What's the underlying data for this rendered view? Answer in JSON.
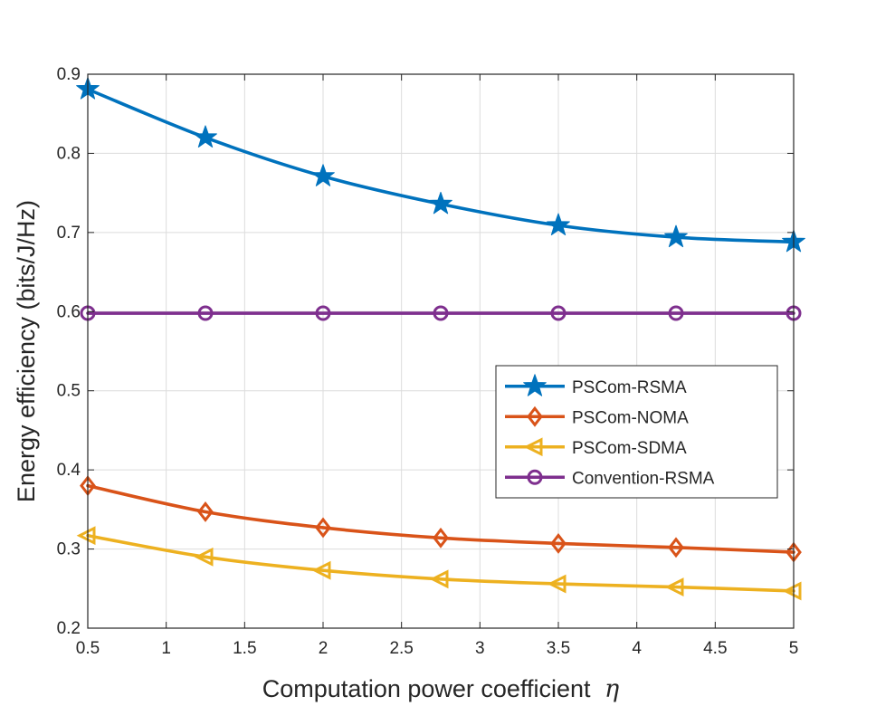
{
  "chart_data": {
    "type": "line",
    "title": "",
    "xlabel": "Computation power coefficient",
    "xlabel_symbol": "η",
    "ylabel": "Energy efficiency (bits/J/Hz)",
    "xlim": [
      0.5,
      5
    ],
    "ylim": [
      0.2,
      0.9
    ],
    "grid": true,
    "legend_position": "middle-right",
    "x": [
      0.5,
      1.25,
      2,
      2.75,
      3.5,
      4.25,
      5
    ],
    "x_ticks": [
      {
        "value": 0.5,
        "label": "0.5"
      },
      {
        "value": 1,
        "label": "1"
      },
      {
        "value": 1.5,
        "label": "1.5"
      },
      {
        "value": 2,
        "label": "2"
      },
      {
        "value": 2.5,
        "label": "2.5"
      },
      {
        "value": 3,
        "label": "3"
      },
      {
        "value": 3.5,
        "label": "3.5"
      },
      {
        "value": 4,
        "label": "4"
      },
      {
        "value": 4.5,
        "label": "4.5"
      },
      {
        "value": 5,
        "label": "5"
      }
    ],
    "y_ticks": [
      {
        "value": 0.2,
        "label": "0.2"
      },
      {
        "value": 0.3,
        "label": "0.3"
      },
      {
        "value": 0.4,
        "label": "0.4"
      },
      {
        "value": 0.5,
        "label": "0.5"
      },
      {
        "value": 0.6,
        "label": "0.6"
      },
      {
        "value": 0.7,
        "label": "0.7"
      },
      {
        "value": 0.8,
        "label": "0.8"
      },
      {
        "value": 0.9,
        "label": "0.9"
      }
    ],
    "series": [
      {
        "name": "PSCom-RSMA",
        "color": "#0072BD",
        "marker": "star",
        "values": [
          0.881,
          0.82,
          0.771,
          0.736,
          0.709,
          0.694,
          0.688
        ]
      },
      {
        "name": "PSCom-NOMA",
        "color": "#D95319",
        "marker": "diamond",
        "values": [
          0.38,
          0.347,
          0.327,
          0.314,
          0.307,
          0.302,
          0.296
        ]
      },
      {
        "name": "PSCom-SDMA",
        "color": "#EDB120",
        "marker": "triangle-left",
        "values": [
          0.317,
          0.29,
          0.273,
          0.262,
          0.256,
          0.252,
          0.247
        ]
      },
      {
        "name": "Convention-RSMA",
        "color": "#7E2F8E",
        "marker": "circle",
        "values": [
          0.598,
          0.598,
          0.598,
          0.598,
          0.598,
          0.598,
          0.598
        ]
      }
    ]
  }
}
